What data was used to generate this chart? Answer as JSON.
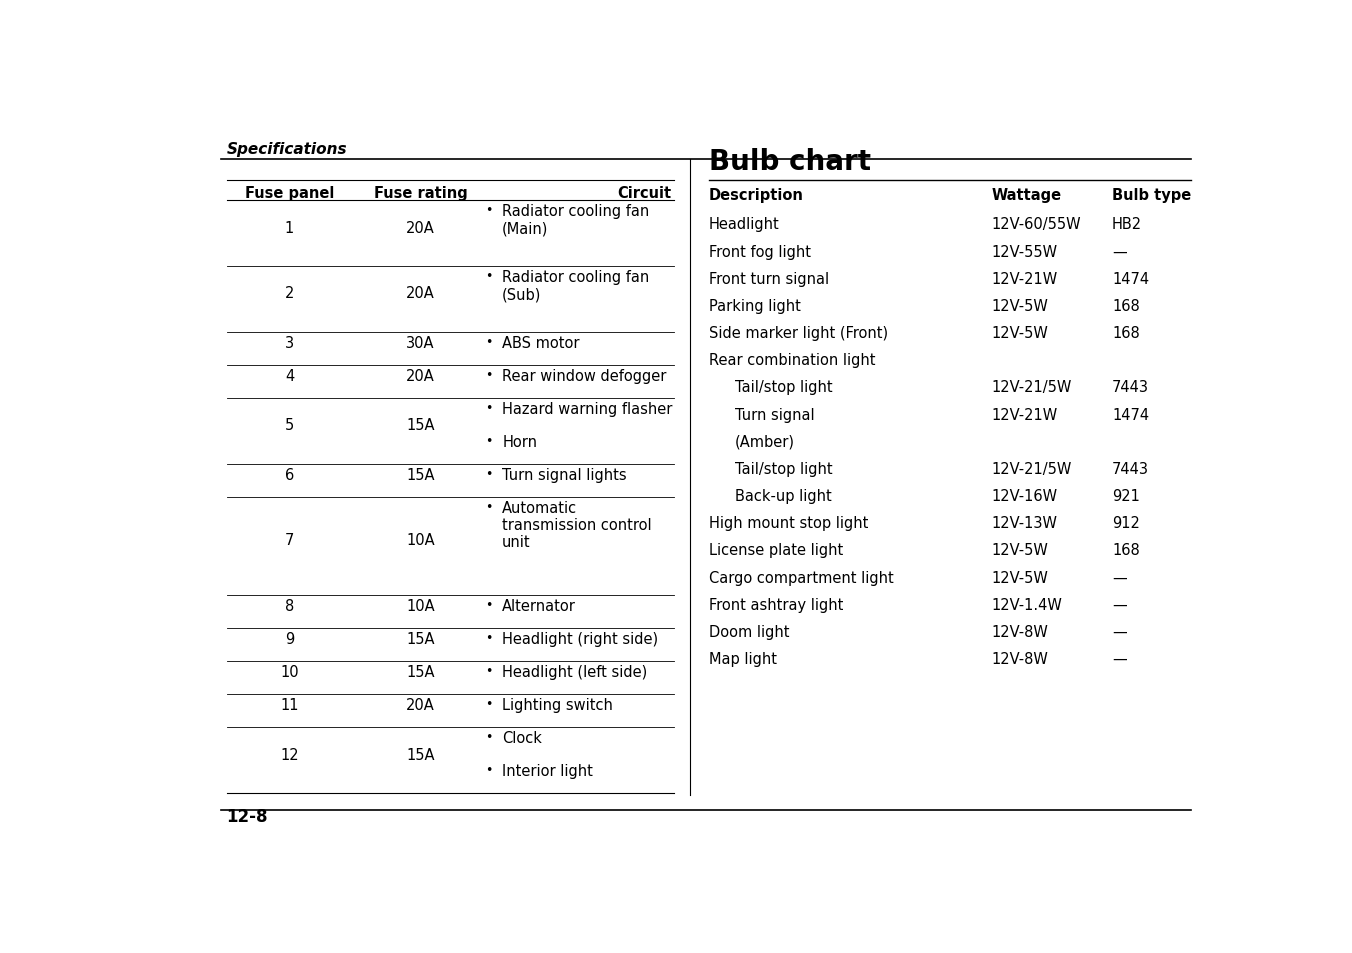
{
  "page_header": "Specifications",
  "page_number": "12-8",
  "bg_color": "#ffffff",
  "fuse_table_headers": [
    "Fuse panel",
    "Fuse rating",
    "Circuit"
  ],
  "fuse_rows": [
    {
      "panel": "1",
      "rating": "20A",
      "circuits": [
        "Radiator cooling fan\n(Main)"
      ]
    },
    {
      "panel": "2",
      "rating": "20A",
      "circuits": [
        "Radiator cooling fan\n(Sub)"
      ]
    },
    {
      "panel": "3",
      "rating": "30A",
      "circuits": [
        "ABS motor"
      ]
    },
    {
      "panel": "4",
      "rating": "20A",
      "circuits": [
        "Rear window defogger"
      ]
    },
    {
      "panel": "5",
      "rating": "15A",
      "circuits": [
        "Hazard warning flasher",
        "Horn"
      ]
    },
    {
      "panel": "6",
      "rating": "15A",
      "circuits": [
        "Turn signal lights"
      ]
    },
    {
      "panel": "7",
      "rating": "10A",
      "circuits": [
        "Automatic\ntransmission control\nunit"
      ]
    },
    {
      "panel": "8",
      "rating": "10A",
      "circuits": [
        "Alternator"
      ]
    },
    {
      "panel": "9",
      "rating": "15A",
      "circuits": [
        "Headlight (right side)"
      ]
    },
    {
      "panel": "10",
      "rating": "15A",
      "circuits": [
        "Headlight (left side)"
      ]
    },
    {
      "panel": "11",
      "rating": "20A",
      "circuits": [
        "Lighting switch"
      ]
    },
    {
      "panel": "12",
      "rating": "15A",
      "circuits": [
        "Clock",
        "Interior light"
      ]
    }
  ],
  "bulb_title": "Bulb chart",
  "bulb_headers": [
    "Description",
    "Wattage",
    "Bulb type"
  ],
  "bulb_rows": [
    {
      "desc": "Headlight",
      "indent": false,
      "wattage": "12V-60/55W",
      "bulb": "HB2"
    },
    {
      "desc": "Front fog light",
      "indent": false,
      "wattage": "12V-55W",
      "bulb": "—"
    },
    {
      "desc": "Front turn signal",
      "indent": false,
      "wattage": "12V-21W",
      "bulb": "1474"
    },
    {
      "desc": "Parking light",
      "indent": false,
      "wattage": "12V-5W",
      "bulb": "168"
    },
    {
      "desc": "Side marker light (Front)",
      "indent": false,
      "wattage": "12V-5W",
      "bulb": "168"
    },
    {
      "desc": "Rear combination light",
      "indent": false,
      "wattage": "",
      "bulb": ""
    },
    {
      "desc": "Tail/stop light",
      "indent": true,
      "wattage": "12V-21/5W",
      "bulb": "7443"
    },
    {
      "desc": "Turn signal",
      "indent": true,
      "wattage": "12V-21W",
      "bulb": "1474"
    },
    {
      "desc": "(Amber)",
      "indent": true,
      "wattage": "",
      "bulb": ""
    },
    {
      "desc": "Tail/stop light",
      "indent": true,
      "wattage": "12V-21/5W",
      "bulb": "7443"
    },
    {
      "desc": "Back-up light",
      "indent": true,
      "wattage": "12V-16W",
      "bulb": "921"
    },
    {
      "desc": "High mount stop light",
      "indent": false,
      "wattage": "12V-13W",
      "bulb": "912"
    },
    {
      "desc": "License plate light",
      "indent": false,
      "wattage": "12V-5W",
      "bulb": "168"
    },
    {
      "desc": "Cargo compartment light",
      "indent": false,
      "wattage": "12V-5W",
      "bulb": "—"
    },
    {
      "desc": "Front ashtray light",
      "indent": false,
      "wattage": "12V-1.4W",
      "bulb": "—"
    },
    {
      "desc": "Doom light",
      "indent": false,
      "wattage": "12V-8W",
      "bulb": "—"
    },
    {
      "desc": "Map light",
      "indent": false,
      "wattage": "12V-8W",
      "bulb": "—"
    }
  ]
}
